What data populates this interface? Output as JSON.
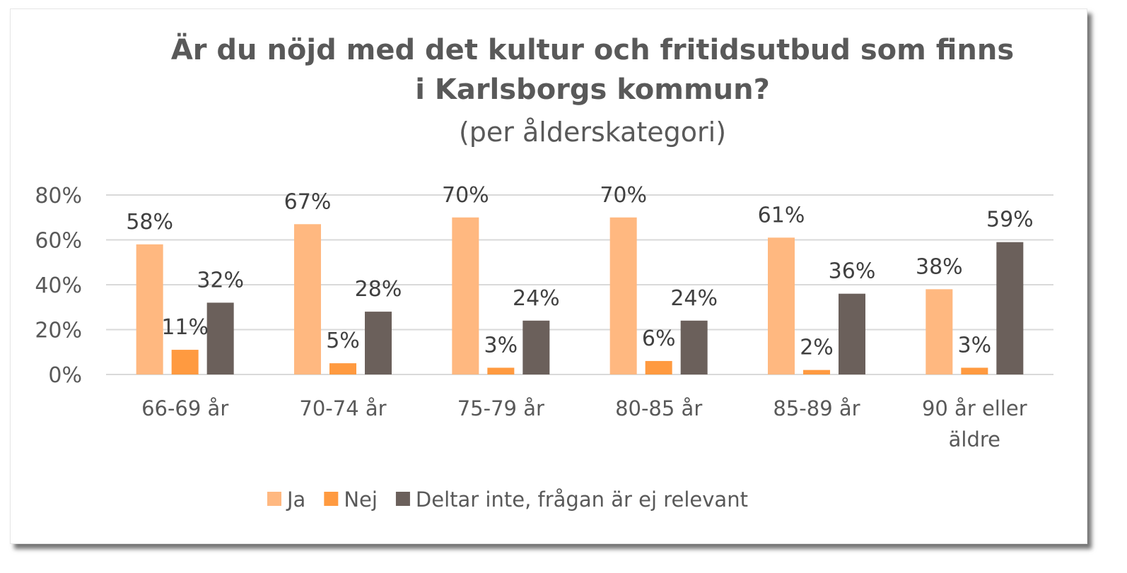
{
  "chart_data": {
    "type": "bar",
    "title_line1": "Är du nöjd med det kultur och fritidsutbud som finns",
    "title_line2": "i Karlsborgs kommun?",
    "subtitle": "(per ålderskategori)",
    "categories": [
      [
        "66-69 år"
      ],
      [
        "70-74 år"
      ],
      [
        "75-79 år"
      ],
      [
        "80-85 år"
      ],
      [
        "85-89 år"
      ],
      [
        "90 år eller",
        "äldre"
      ]
    ],
    "series": [
      {
        "name": "Ja",
        "color": "#FFB880",
        "values": [
          58,
          67,
          70,
          70,
          61,
          38
        ],
        "labels": [
          "58%",
          "67%",
          "70%",
          "70%",
          "61%",
          "38%"
        ]
      },
      {
        "name": "Nej",
        "color": "#FF9A40",
        "values": [
          11,
          5,
          3,
          6,
          2,
          3
        ],
        "labels": [
          "11%",
          "5%",
          "3%",
          "6%",
          "2%",
          "3%"
        ]
      },
      {
        "name": "Deltar inte, frågan är ej relevant",
        "color": "#6B605B",
        "values": [
          32,
          28,
          24,
          24,
          36,
          59
        ],
        "labels": [
          "32%",
          "28%",
          "24%",
          "24%",
          "36%",
          "59%"
        ]
      }
    ],
    "y_ticks": [
      "0%",
      "20%",
      "40%",
      "60%",
      "80%"
    ],
    "ylim": [
      0,
      80
    ],
    "grid": true,
    "legend_position": "bottom"
  }
}
